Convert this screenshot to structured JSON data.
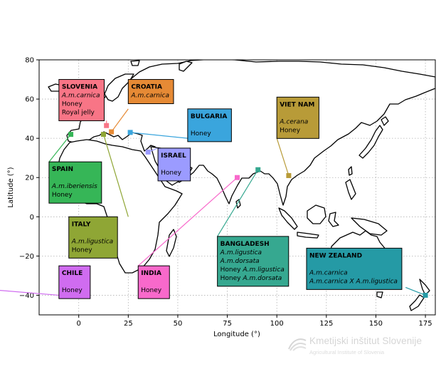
{
  "map": {
    "xlabel": "Longitude (°)",
    "ylabel": "Latitude (°)",
    "xlim": [
      -20,
      180
    ],
    "ylim": [
      -50,
      80
    ],
    "xticks": [
      0,
      25,
      50,
      75,
      100,
      125,
      150,
      175
    ],
    "yticks": [
      -40,
      -20,
      0,
      20,
      40,
      60,
      80
    ],
    "grid": true,
    "annotations": [
      {
        "key": "slovenia",
        "country": "SLOVENIA",
        "color": "#f87586",
        "lines": [
          [
            {
              "t": "A.m.carnica",
              "i": true
            }
          ],
          [
            {
              "t": "Honey"
            }
          ],
          [
            {
              "t": "Royal jelly"
            }
          ]
        ],
        "marker": {
          "lon": 14,
          "lat": 46.5
        },
        "label": {
          "lon": -10,
          "lat": 70
        },
        "anchor": {
          "lon": 14,
          "lat": 49
        }
      },
      {
        "key": "croatia",
        "country": "CROATIA",
        "color": "#e68a35",
        "lines": [
          [
            {
              "t": "A.m.carnica",
              "i": true
            }
          ]
        ],
        "marker": {
          "lon": 16.5,
          "lat": 43.3
        },
        "label": {
          "lon": 25,
          "lat": 70
        },
        "anchor": {
          "lon": 25,
          "lat": 55
        }
      },
      {
        "key": "bulgaria",
        "country": "BULGARIA",
        "color": "#3aa5dd",
        "lines": [
          [],
          [
            {
              "t": "Honey"
            }
          ]
        ],
        "marker": {
          "lon": 26,
          "lat": 43
        },
        "label": {
          "lon": 55,
          "lat": 55
        },
        "anchor": {
          "lon": 55,
          "lat": 40
        }
      },
      {
        "key": "spain",
        "country": "SPAIN",
        "color": "#36b657",
        "lines": [
          [],
          [
            {
              "t": "A.m.iberiensis",
              "i": true
            }
          ],
          [
            {
              "t": "Honey"
            }
          ]
        ],
        "marker": {
          "lon": -4,
          "lat": 42
        },
        "label": {
          "lon": -15,
          "lat": 28
        },
        "anchor": {
          "lon": -15,
          "lat": 28
        }
      },
      {
        "key": "italy",
        "country": "ITALY",
        "color": "#8fa635",
        "lines": [
          [],
          [
            {
              "t": "A.m.ligustica",
              "i": true
            }
          ],
          [
            {
              "t": "Honey"
            }
          ]
        ],
        "marker": {
          "lon": 12.5,
          "lat": 42
        },
        "label": {
          "lon": -5,
          "lat": 0
        },
        "anchor": {
          "lon": 25,
          "lat": 0
        }
      },
      {
        "key": "israel",
        "country": "ISRAEL",
        "color": "#9b9bff",
        "lines": [
          [],
          [
            {
              "t": "Honey"
            }
          ]
        ],
        "marker": {
          "lon": 35,
          "lat": 33
        },
        "label": {
          "lon": 40,
          "lat": 35
        },
        "anchor": {
          "lon": 40,
          "lat": 35
        }
      },
      {
        "key": "vietnam",
        "country": "VIET NAM",
        "color": "#b89b38",
        "lines": [
          [],
          [
            {
              "t": "A.cerana",
              "i": true
            }
          ],
          [
            {
              "t": "Honey"
            }
          ]
        ],
        "marker": {
          "lon": 106,
          "lat": 21
        },
        "label": {
          "lon": 100,
          "lat": 61
        },
        "anchor": {
          "lon": 100,
          "lat": 40
        }
      },
      {
        "key": "bangladesh",
        "country": "BANGLADESH",
        "color": "#36a890",
        "lines": [
          [
            {
              "t": "A.m.ligustica",
              "i": true
            }
          ],
          [
            {
              "t": "A.m.dorsata",
              "i": true
            }
          ],
          [
            {
              "t": "Honey "
            },
            {
              "t": "A.m.ligustica",
              "i": true
            }
          ],
          [
            {
              "t": "Honey "
            },
            {
              "t": "A.m.dorsata",
              "i": true
            }
          ]
        ],
        "marker": {
          "lon": 90.5,
          "lat": 24
        },
        "label": {
          "lon": 70,
          "lat": -10
        },
        "anchor": {
          "lon": 70,
          "lat": -10
        }
      },
      {
        "key": "newzealand",
        "country": "NEW ZEALAND",
        "color": "#259aa5",
        "lines": [
          [],
          [
            {
              "t": "A.m.carnica",
              "i": true
            }
          ],
          [
            {
              "t": "A.m.carnica X A.m.ligustica",
              "i": true
            }
          ]
        ],
        "marker": {
          "lon": 175,
          "lat": -40
        },
        "label": {
          "lon": 115,
          "lat": -16
        },
        "anchor": {
          "lon": 165,
          "lat": -36
        }
      },
      {
        "key": "chile",
        "country": "CHILE",
        "color": "#d06cf0",
        "lines": [
          [],
          [
            {
              "t": "Honey"
            }
          ]
        ],
        "marker": {
          "lon": -70,
          "lat": -35
        },
        "label": {
          "lon": -10,
          "lat": -25
        },
        "anchor": {
          "lon": -10,
          "lat": -40
        }
      },
      {
        "key": "india",
        "country": "INDIA",
        "color": "#f869cb",
        "lines": [
          [],
          [
            {
              "t": "Honey"
            }
          ]
        ],
        "marker": {
          "lon": 80,
          "lat": 20
        },
        "label": {
          "lon": 30,
          "lat": -25
        },
        "anchor": {
          "lon": 30,
          "lat": -25
        }
      }
    ]
  },
  "watermark": {
    "title": "Kmetijski inštitut Slovenije",
    "subtitle": "Agricultural Institute of Slovenia"
  }
}
